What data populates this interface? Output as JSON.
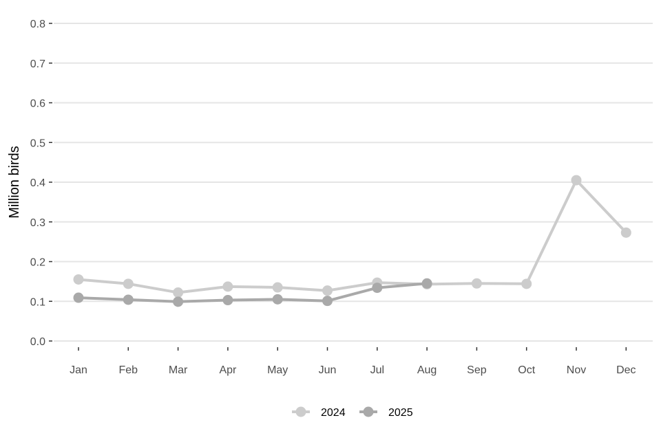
{
  "chart_data": {
    "type": "line",
    "title": "",
    "xlabel": "",
    "ylabel": "Million birds",
    "categories": [
      "Jan",
      "Feb",
      "Mar",
      "Apr",
      "May",
      "Jun",
      "Jul",
      "Aug",
      "Sep",
      "Oct",
      "Nov",
      "Dec"
    ],
    "yticks": [
      "0.0",
      "0.1",
      "0.2",
      "0.3",
      "0.4",
      "0.5",
      "0.6",
      "0.7",
      "0.8"
    ],
    "ylim": [
      0,
      0.8
    ],
    "grid": true,
    "legend_position": "bottom",
    "series": [
      {
        "name": "2024",
        "color": "#cccccc",
        "values": [
          0.155,
          0.144,
          0.122,
          0.137,
          0.135,
          0.127,
          0.147,
          0.143,
          0.145,
          0.144,
          0.405,
          0.273
        ]
      },
      {
        "name": "2025",
        "color": "#a9a9a9",
        "values": [
          0.109,
          0.104,
          0.099,
          0.103,
          0.105,
          0.101,
          0.134,
          0.145,
          null,
          null,
          null,
          null
        ]
      }
    ]
  }
}
